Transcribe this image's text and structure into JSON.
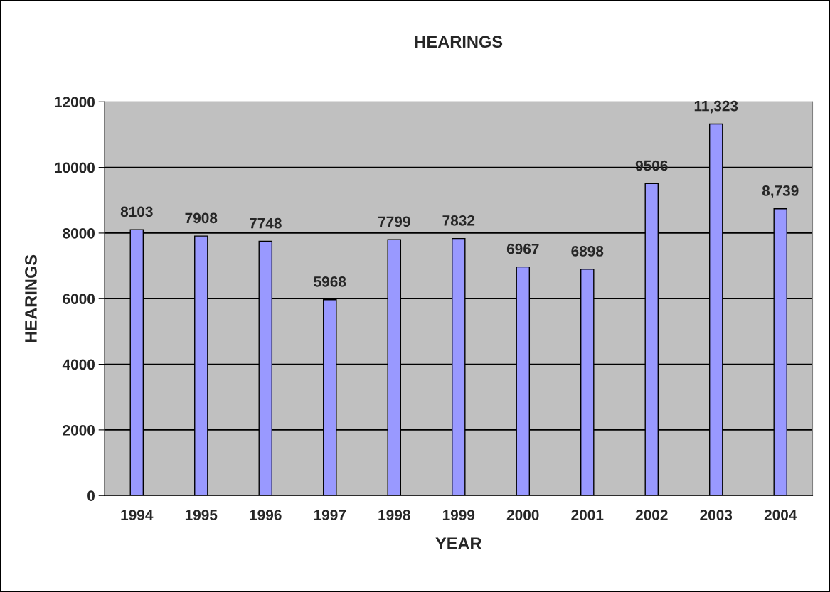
{
  "chart_data": {
    "type": "bar",
    "title": "HEARINGS",
    "xlabel": "YEAR",
    "ylabel": "HEARINGS",
    "categories": [
      "1994",
      "1995",
      "1996",
      "1997",
      "1998",
      "1999",
      "2000",
      "2001",
      "2002",
      "2003",
      "2004"
    ],
    "values": [
      8103,
      7908,
      7748,
      5968,
      7799,
      7832,
      6967,
      6898,
      9506,
      11323,
      8739
    ],
    "value_labels": [
      "8103",
      "7908",
      "7748",
      "5968",
      "7799",
      "7832",
      "6967",
      "6898",
      "9506",
      "11,323",
      "8,739"
    ],
    "color": "#9999ff",
    "ylim": [
      0,
      12000
    ],
    "yticks": [
      0,
      2000,
      4000,
      6000,
      8000,
      10000,
      12000
    ],
    "grid": "y",
    "legend": false
  }
}
